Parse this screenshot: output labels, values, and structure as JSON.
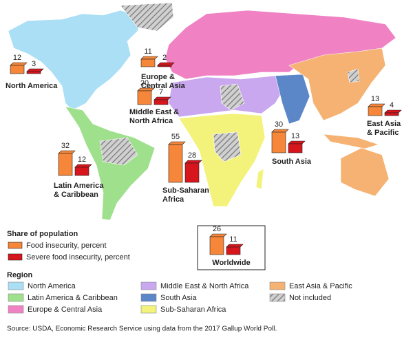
{
  "regions": [
    {
      "label": [
        "North America"
      ],
      "food": 12,
      "severe": 3
    },
    {
      "label": [
        "Europe &",
        "Central Asia"
      ],
      "food": 11,
      "severe": 2
    },
    {
      "label": [
        "Middle East &",
        "North Africa"
      ],
      "food": 20,
      "severe": 7
    },
    {
      "label": [
        "East Asia",
        "& Pacific"
      ],
      "food": 13,
      "severe": 4
    },
    {
      "label": [
        "South Asia"
      ],
      "food": 30,
      "severe": 13
    },
    {
      "label": [
        "Latin America",
        "& Caribbean"
      ],
      "food": 32,
      "severe": 12
    },
    {
      "label": [
        "Sub-Saharan",
        "Africa"
      ],
      "food": 55,
      "severe": 28
    }
  ],
  "worldwide": {
    "label": "Worldwide",
    "food": 26,
    "severe": 11
  },
  "share_legend": {
    "title": "Share of population",
    "items": [
      {
        "name": "Food insecurity, percent",
        "color": "#f5863a"
      },
      {
        "name": "Severe food insecurity, percent",
        "color": "#d7151d"
      }
    ]
  },
  "region_legend": {
    "title": "Region",
    "items": [
      {
        "name": "North America",
        "color": "#aadff5"
      },
      {
        "name": "Latin America & Caribbean",
        "color": "#9fe08c"
      },
      {
        "name": "Europe & Central Asia",
        "color": "#f082c4"
      },
      {
        "name": "Middle East & North Africa",
        "color": "#c9a8ef"
      },
      {
        "name": "South Asia",
        "color": "#5b87c9"
      },
      {
        "name": "Sub-Saharan Africa",
        "color": "#f3f37c"
      },
      {
        "name": "East Asia & Pacific",
        "color": "#f5b273"
      },
      {
        "name": "Not included",
        "color": "#bbbbbb",
        "hatched": true
      }
    ]
  },
  "source": "Source: USDA, Economic Research Service using data from the 2017 Gallup World Poll."
}
